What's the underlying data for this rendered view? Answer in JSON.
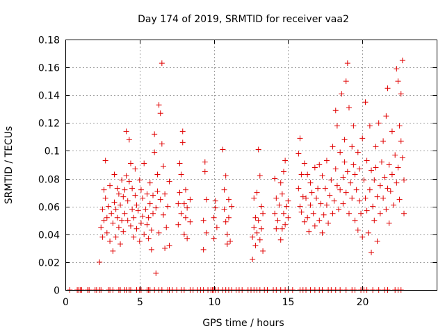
{
  "chart_data": {
    "type": "scatter",
    "title": "Day 174 of 2019, SRMTID for receiver vaa2",
    "xlabel": "GPS time / hours",
    "ylabel": "SRMTID / TECUs",
    "xlim": [
      0,
      25
    ],
    "ylim": [
      0,
      0.18
    ],
    "grid": true,
    "marker": "+",
    "color": "#e00000",
    "x_ticks": [
      0,
      5,
      10,
      15,
      20
    ],
    "x_tick_labels": [
      "0",
      "5",
      "10",
      "15",
      "20"
    ],
    "y_ticks": [
      0,
      0.02,
      0.04,
      0.06,
      0.08,
      0.1,
      0.12,
      0.14,
      0.16,
      0.18
    ],
    "y_tick_labels": [
      "0",
      "0.02",
      "0.04",
      "0.06",
      "0.08",
      "0.1",
      "0.12",
      "0.14",
      "0.16",
      "0.18"
    ],
    "zero_value_times": [
      0.3,
      0.8,
      0.9,
      1.0,
      1.1,
      1.5,
      1.6,
      2.0,
      2.1,
      2.3,
      2.4,
      2.9,
      3.0,
      3.2,
      3.6,
      3.7,
      4.0,
      4.1,
      4.3,
      4.4,
      4.8,
      5.0,
      5.1,
      5.5,
      5.6,
      5.7,
      6.0,
      6.3,
      6.5,
      6.9,
      7.0,
      7.2,
      7.5,
      7.8,
      8.0,
      8.4,
      8.6,
      8.9,
      9.1,
      9.3,
      9.6,
      9.8,
      9.9,
      10.0,
      10.1,
      10.3,
      10.6,
      10.8,
      11.0,
      11.2,
      11.5,
      11.7,
      11.9,
      12.3,
      12.5,
      12.7,
      12.9,
      13.1,
      13.4,
      13.6,
      14.0,
      14.2,
      14.5,
      14.8,
      15.0,
      15.3,
      15.8,
      16.0,
      16.2,
      16.5,
      16.8,
      17.1,
      17.3,
      17.7,
      17.9,
      18.2,
      18.5,
      18.9,
      19.3,
      19.5,
      19.9,
      20.1,
      20.3,
      20.7,
      21.1,
      21.5,
      21.7,
      22.2,
      22.4,
      22.6
    ],
    "series": [
      {
        "name": "SRMTID",
        "points": [
          [
            2.3,
            0.02
          ],
          [
            2.4,
            0.045
          ],
          [
            2.5,
            0.058
          ],
          [
            2.5,
            0.038
          ],
          [
            2.6,
            0.072
          ],
          [
            2.6,
            0.05
          ],
          [
            2.7,
            0.066
          ],
          [
            2.7,
            0.093
          ],
          [
            2.8,
            0.052
          ],
          [
            2.8,
            0.041
          ],
          [
            2.9,
            0.06
          ],
          [
            3.0,
            0.035
          ],
          [
            3.0,
            0.075
          ],
          [
            3.1,
            0.055
          ],
          [
            3.2,
            0.028
          ],
          [
            3.2,
            0.048
          ],
          [
            3.3,
            0.063
          ],
          [
            3.3,
            0.083
          ],
          [
            3.4,
            0.038
          ],
          [
            3.4,
            0.058
          ],
          [
            3.5,
            0.052
          ],
          [
            3.5,
            0.073
          ],
          [
            3.6,
            0.045
          ],
          [
            3.6,
            0.069
          ],
          [
            3.7,
            0.033
          ],
          [
            3.7,
            0.061
          ],
          [
            3.8,
            0.079
          ],
          [
            3.8,
            0.05
          ],
          [
            3.9,
            0.042
          ],
          [
            3.9,
            0.067
          ],
          [
            4.0,
            0.072
          ],
          [
            4.0,
            0.055
          ],
          [
            4.1,
            0.114
          ],
          [
            4.1,
            0.082
          ],
          [
            4.2,
            0.05
          ],
          [
            4.2,
            0.064
          ],
          [
            4.3,
            0.078
          ],
          [
            4.3,
            0.108
          ],
          [
            4.4,
            0.046
          ],
          [
            4.4,
            0.091
          ],
          [
            4.5,
            0.058
          ],
          [
            4.5,
            0.073
          ],
          [
            4.6,
            0.038
          ],
          [
            4.6,
            0.052
          ],
          [
            4.7,
            0.087
          ],
          [
            4.7,
            0.068
          ],
          [
            4.8,
            0.044
          ],
          [
            4.8,
            0.061
          ],
          [
            4.9,
            0.057
          ],
          [
            5.0,
            0.079
          ],
          [
            5.0,
            0.035
          ],
          [
            5.1,
            0.048
          ],
          [
            5.1,
            0.072
          ],
          [
            5.2,
            0.066
          ],
          [
            5.2,
            0.053
          ],
          [
            5.3,
            0.04
          ],
          [
            5.3,
            0.091
          ],
          [
            5.4,
            0.058
          ],
          [
            5.5,
            0.047
          ],
          [
            5.5,
            0.069
          ],
          [
            5.6,
            0.037
          ],
          [
            5.6,
            0.052
          ],
          [
            5.7,
            0.062
          ],
          [
            5.7,
            0.077
          ],
          [
            5.8,
            0.043
          ],
          [
            5.8,
            0.029
          ],
          [
            5.9,
            0.055
          ],
          [
            5.9,
            0.068
          ],
          [
            6.0,
            0.099
          ],
          [
            6.0,
            0.112
          ],
          [
            6.1,
            0.012
          ],
          [
            6.1,
            0.059
          ],
          [
            6.2,
            0.071
          ],
          [
            6.2,
            0.083
          ],
          [
            6.3,
            0.133
          ],
          [
            6.3,
            0.041
          ],
          [
            6.4,
            0.127
          ],
          [
            6.4,
            0.065
          ],
          [
            6.5,
            0.163
          ],
          [
            6.5,
            0.105
          ],
          [
            6.6,
            0.089
          ],
          [
            6.6,
            0.054
          ],
          [
            6.7,
            0.03
          ],
          [
            6.7,
            0.069
          ],
          [
            6.8,
            0.045
          ],
          [
            6.9,
            0.06
          ],
          [
            7.0,
            0.032
          ],
          [
            7.0,
            0.078
          ],
          [
            7.6,
            0.047
          ],
          [
            7.6,
            0.062
          ],
          [
            7.7,
            0.091
          ],
          [
            7.7,
            0.07
          ],
          [
            7.8,
            0.055
          ],
          [
            7.8,
            0.083
          ],
          [
            7.9,
            0.114
          ],
          [
            7.9,
            0.106
          ],
          [
            8.0,
            0.04
          ],
          [
            8.0,
            0.062
          ],
          [
            8.1,
            0.072
          ],
          [
            8.1,
            0.052
          ],
          [
            8.2,
            0.059
          ],
          [
            8.2,
            0.037
          ],
          [
            8.4,
            0.049
          ],
          [
            8.4,
            0.065
          ],
          [
            9.3,
            0.029
          ],
          [
            9.3,
            0.05
          ],
          [
            9.4,
            0.092
          ],
          [
            9.4,
            0.085
          ],
          [
            9.5,
            0.065
          ],
          [
            9.5,
            0.041
          ],
          [
            10.0,
            0.052
          ],
          [
            10.0,
            0.037
          ],
          [
            10.1,
            0.059
          ],
          [
            10.1,
            0.064
          ],
          [
            10.2,
            0.045
          ],
          [
            10.6,
            0.101
          ],
          [
            10.7,
            0.072
          ],
          [
            10.7,
            0.058
          ],
          [
            10.8,
            0.082
          ],
          [
            10.8,
            0.049
          ],
          [
            10.9,
            0.04
          ],
          [
            10.9,
            0.033
          ],
          [
            11.0,
            0.065
          ],
          [
            11.0,
            0.052
          ],
          [
            11.1,
            0.035
          ],
          [
            11.2,
            0.06
          ],
          [
            12.6,
            0.022
          ],
          [
            12.6,
            0.038
          ],
          [
            12.7,
            0.045
          ],
          [
            12.7,
            0.066
          ],
          [
            12.8,
            0.032
          ],
          [
            12.8,
            0.052
          ],
          [
            12.9,
            0.041
          ],
          [
            12.9,
            0.07
          ],
          [
            13.0,
            0.101
          ],
          [
            13.0,
            0.05
          ],
          [
            13.1,
            0.082
          ],
          [
            13.1,
            0.036
          ],
          [
            13.2,
            0.06
          ],
          [
            13.2,
            0.044
          ],
          [
            13.3,
            0.028
          ],
          [
            13.3,
            0.055
          ],
          [
            14.1,
            0.08
          ],
          [
            14.1,
            0.055
          ],
          [
            14.2,
            0.044
          ],
          [
            14.2,
            0.066
          ],
          [
            14.3,
            0.05
          ],
          [
            14.4,
            0.061
          ],
          [
            14.5,
            0.036
          ],
          [
            14.5,
            0.077
          ],
          [
            14.6,
            0.069
          ],
          [
            14.6,
            0.044
          ],
          [
            14.7,
            0.085
          ],
          [
            14.7,
            0.055
          ],
          [
            14.8,
            0.047
          ],
          [
            14.8,
            0.093
          ],
          [
            14.9,
            0.06
          ],
          [
            15.0,
            0.052
          ],
          [
            15.0,
            0.064
          ],
          [
            15.7,
            0.098
          ],
          [
            15.7,
            0.073
          ],
          [
            15.8,
            0.06
          ],
          [
            15.8,
            0.109
          ],
          [
            15.9,
            0.056
          ],
          [
            15.9,
            0.083
          ],
          [
            16.0,
            0.067
          ],
          [
            16.1,
            0.091
          ],
          [
            16.1,
            0.049
          ],
          [
            16.2,
            0.066
          ],
          [
            16.3,
            0.052
          ],
          [
            16.3,
            0.083
          ],
          [
            16.4,
            0.042
          ],
          [
            16.5,
            0.077
          ],
          [
            16.5,
            0.061
          ],
          [
            16.6,
            0.07
          ],
          [
            16.7,
            0.055
          ],
          [
            16.8,
            0.088
          ],
          [
            16.8,
            0.046
          ],
          [
            16.9,
            0.066
          ],
          [
            17.0,
            0.073
          ],
          [
            17.1,
            0.05
          ],
          [
            17.1,
            0.09
          ],
          [
            17.2,
            0.062
          ],
          [
            17.3,
            0.041
          ],
          [
            17.3,
            0.082
          ],
          [
            17.4,
            0.054
          ],
          [
            17.5,
            0.073
          ],
          [
            17.6,
            0.061
          ],
          [
            17.6,
            0.093
          ],
          [
            17.7,
            0.048
          ],
          [
            17.8,
            0.068
          ],
          [
            17.9,
            0.079
          ],
          [
            18.0,
            0.055
          ],
          [
            18.0,
            0.103
          ],
          [
            18.1,
            0.064
          ],
          [
            18.2,
            0.129
          ],
          [
            18.2,
            0.087
          ],
          [
            18.3,
            0.118
          ],
          [
            18.3,
            0.075
          ],
          [
            18.4,
            0.058
          ],
          [
            18.5,
            0.099
          ],
          [
            18.5,
            0.072
          ],
          [
            18.6,
            0.141
          ],
          [
            18.7,
            0.081
          ],
          [
            18.7,
            0.062
          ],
          [
            18.8,
            0.092
          ],
          [
            18.8,
            0.108
          ],
          [
            18.9,
            0.15
          ],
          [
            18.9,
            0.07
          ],
          [
            19.0,
            0.163
          ],
          [
            19.0,
            0.085
          ],
          [
            19.1,
            0.131
          ],
          [
            19.1,
            0.055
          ],
          [
            19.2,
            0.077
          ],
          [
            19.3,
            0.103
          ],
          [
            19.3,
            0.066
          ],
          [
            19.4,
            0.118
          ],
          [
            19.4,
            0.09
          ],
          [
            19.5,
            0.083
          ],
          [
            19.5,
            0.05
          ],
          [
            19.6,
            0.072
          ],
          [
            19.7,
            0.099
          ],
          [
            19.7,
            0.043
          ],
          [
            19.8,
            0.087
          ],
          [
            19.8,
            0.064
          ],
          [
            19.9,
            0.055
          ],
          [
            20.0,
            0.109
          ],
          [
            20.0,
            0.038
          ],
          [
            20.1,
            0.079
          ],
          [
            20.2,
            0.135
          ],
          [
            20.2,
            0.066
          ],
          [
            20.3,
            0.093
          ],
          [
            20.3,
            0.057
          ],
          [
            20.4,
            0.041
          ],
          [
            20.5,
            0.072
          ],
          [
            20.5,
            0.118
          ],
          [
            20.6,
            0.086
          ],
          [
            20.6,
            0.027
          ],
          [
            20.7,
            0.06
          ],
          [
            20.8,
            0.079
          ],
          [
            20.8,
            0.05
          ],
          [
            20.9,
            0.103
          ],
          [
            20.9,
            0.088
          ],
          [
            21.0,
            0.067
          ],
          [
            21.0,
            0.035
          ],
          [
            21.1,
            0.12
          ],
          [
            21.2,
            0.075
          ],
          [
            21.2,
            0.055
          ],
          [
            21.3,
            0.092
          ],
          [
            21.4,
            0.107
          ],
          [
            21.4,
            0.066
          ],
          [
            21.5,
            0.081
          ],
          [
            21.6,
            0.125
          ],
          [
            21.6,
            0.058
          ],
          [
            21.7,
            0.145
          ],
          [
            21.7,
            0.073
          ],
          [
            21.8,
            0.09
          ],
          [
            21.8,
            0.048
          ],
          [
            21.9,
            0.071
          ],
          [
            22.0,
            0.114
          ],
          [
            22.0,
            0.083
          ],
          [
            22.1,
            0.061
          ],
          [
            22.2,
            0.097
          ],
          [
            22.3,
            0.159
          ],
          [
            22.3,
            0.077
          ],
          [
            22.4,
            0.15
          ],
          [
            22.4,
            0.088
          ],
          [
            22.5,
            0.118
          ],
          [
            22.5,
            0.065
          ],
          [
            22.6,
            0.141
          ],
          [
            22.6,
            0.107
          ],
          [
            22.7,
            0.165
          ],
          [
            22.7,
            0.095
          ],
          [
            22.8,
            0.079
          ],
          [
            22.8,
            0.055
          ]
        ]
      }
    ]
  }
}
